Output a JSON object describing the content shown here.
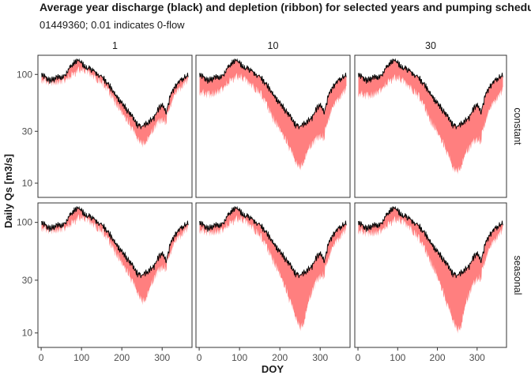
{
  "chart_data": {
    "type": "area",
    "title": "Average year discharge (black) and depletion (ribbon) for selected years and pumping schedules",
    "subtitle": "01449360; 0.01 indicates 0-flow",
    "xlabel": "DOY",
    "ylabel": "Daily Qs [m3/s]",
    "x_scale": "linear",
    "y_scale": "log10",
    "xlim": [
      -8,
      374
    ],
    "ylim": [
      7.4,
      150
    ],
    "x_ticks": [
      0,
      100,
      200,
      300
    ],
    "x_tick_labels": [
      "0",
      "100",
      "200",
      "300"
    ],
    "y_ticks": [
      10,
      30,
      100
    ],
    "y_tick_labels": [
      "10",
      "30",
      "100"
    ],
    "facet_columns": [
      "1",
      "10",
      "30"
    ],
    "facet_rows": [
      "constant",
      "seasonal"
    ],
    "grid": false,
    "colors": {
      "discharge_line": "#000000",
      "depletion_ribbon": "#ff7f7f",
      "panel_border": "#333333"
    },
    "discharge_series": {
      "name": "discharge",
      "doy": [
        1,
        10,
        20,
        30,
        40,
        50,
        60,
        70,
        80,
        90,
        100,
        110,
        120,
        130,
        140,
        150,
        160,
        170,
        180,
        190,
        200,
        210,
        220,
        230,
        240,
        250,
        260,
        270,
        280,
        290,
        300,
        310,
        320,
        330,
        340,
        350,
        365
      ],
      "values": [
        98,
        95,
        88,
        90,
        95,
        93,
        100,
        115,
        125,
        135,
        128,
        115,
        113,
        108,
        100,
        95,
        88,
        78,
        68,
        60,
        55,
        48,
        44,
        38,
        34,
        33,
        35,
        38,
        40,
        48,
        52,
        45,
        62,
        75,
        85,
        90,
        100
      ]
    },
    "depletion_minimum": [
      {
        "pumping_schedule": "constant",
        "years": "1",
        "doy": [
          1,
          50,
          100,
          150,
          180,
          200,
          220,
          240,
          250,
          260,
          270,
          290,
          310,
          330,
          365
        ],
        "values": [
          97,
          92,
          126,
          93,
          64,
          50,
          38,
          28,
          25,
          27,
          30,
          40,
          42,
          72,
          98
        ]
      },
      {
        "pumping_schedule": "constant",
        "years": "10",
        "doy": [
          1,
          30,
          50,
          80,
          100,
          130,
          150,
          180,
          200,
          220,
          240,
          250,
          260,
          270,
          290,
          310,
          330,
          365
        ],
        "values": [
          75,
          72,
          75,
          100,
          108,
          88,
          75,
          45,
          35,
          25,
          17,
          15,
          18,
          22,
          28,
          30,
          55,
          80
        ]
      },
      {
        "pumping_schedule": "constant",
        "years": "30",
        "doy": [
          1,
          30,
          50,
          80,
          100,
          130,
          150,
          180,
          200,
          220,
          240,
          250,
          260,
          270,
          290,
          310,
          330,
          365
        ],
        "values": [
          73,
          70,
          73,
          98,
          105,
          85,
          72,
          42,
          33,
          23,
          15,
          14,
          16,
          20,
          26,
          28,
          52,
          78
        ]
      },
      {
        "pumping_schedule": "seasonal",
        "years": "1",
        "doy": [
          1,
          50,
          100,
          150,
          180,
          200,
          220,
          240,
          250,
          260,
          270,
          290,
          310,
          330,
          365
        ],
        "values": [
          97,
          92,
          126,
          92,
          62,
          48,
          36,
          25,
          21,
          23,
          28,
          40,
          44,
          73,
          98
        ]
      },
      {
        "pumping_schedule": "seasonal",
        "years": "10",
        "doy": [
          1,
          50,
          80,
          100,
          130,
          150,
          180,
          200,
          220,
          240,
          250,
          260,
          270,
          290,
          310,
          330,
          365
        ],
        "values": [
          93,
          88,
          112,
          122,
          102,
          84,
          52,
          38,
          24,
          15,
          12,
          14,
          20,
          32,
          38,
          66,
          95
        ]
      },
      {
        "pumping_schedule": "seasonal",
        "years": "30",
        "doy": [
          1,
          50,
          80,
          100,
          130,
          150,
          180,
          200,
          220,
          240,
          250,
          260,
          270,
          290,
          310,
          330,
          365
        ],
        "values": [
          92,
          86,
          110,
          120,
          100,
          82,
          50,
          36,
          22,
          14,
          11.5,
          13,
          19,
          30,
          36,
          64,
          94
        ]
      }
    ]
  }
}
